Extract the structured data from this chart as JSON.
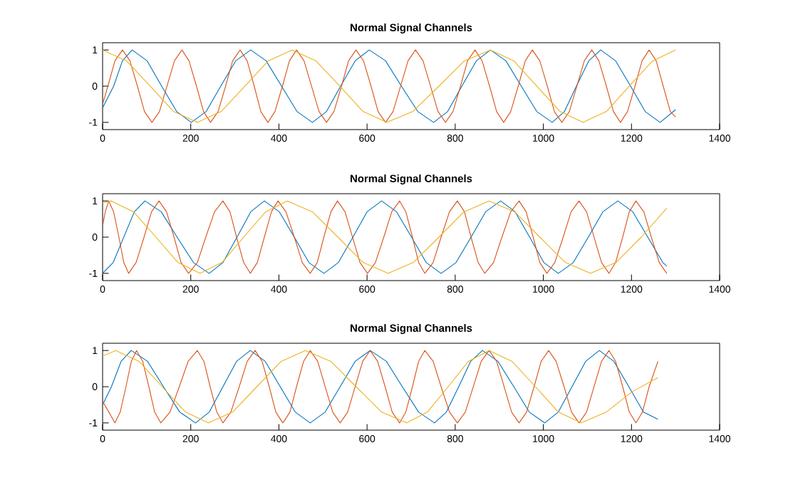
{
  "chart_data": [
    {
      "type": "line",
      "title": "Normal Signal Channels",
      "xlim": [
        0,
        1400
      ],
      "ylim": [
        -1.2,
        1.2
      ],
      "xticks": [
        0,
        200,
        400,
        600,
        800,
        1000,
        1200,
        1400
      ],
      "yticks": [
        -1,
        0,
        1
      ],
      "series": [
        {
          "color": "#0072bd",
          "x": [
            0,
            25,
            45,
            67,
            101,
            134,
            168,
            201,
            235,
            268,
            302,
            336,
            371,
            406,
            441,
            476,
            508,
            540,
            573,
            605,
            642,
            678,
            715,
            751,
            783,
            815,
            848,
            880,
            915,
            950,
            985,
            1020,
            1048,
            1075,
            1103,
            1130,
            1164,
            1198,
            1231,
            1265,
            1300
          ],
          "values": [
            -0.6,
            0,
            0.7,
            1,
            0.7,
            0,
            -0.7,
            -1,
            -0.7,
            0,
            0.7,
            1,
            0.7,
            0,
            -0.7,
            -1,
            -0.7,
            0,
            0.7,
            1,
            0.7,
            0,
            -0.7,
            -1,
            -0.7,
            0,
            0.7,
            1,
            0.7,
            0,
            -0.7,
            -1,
            -0.7,
            0,
            0.7,
            1,
            0.7,
            0,
            -0.7,
            -1,
            -0.65
          ]
        },
        {
          "color": "#d95319",
          "x": [
            0,
            12,
            28,
            45,
            62,
            79,
            95,
            112,
            129,
            146,
            163,
            180,
            196,
            213,
            229,
            245,
            262,
            279,
            295,
            312,
            328,
            344,
            359,
            375,
            391,
            408,
            424,
            440,
            457,
            474,
            491,
            508,
            525,
            542,
            558,
            575,
            592,
            609,
            625,
            642,
            659,
            676,
            693,
            710,
            727,
            744,
            761,
            778,
            795,
            812,
            828,
            845,
            861,
            878,
            894,
            910,
            926,
            943,
            959,
            975,
            992,
            1009,
            1025,
            1042,
            1059,
            1076,
            1093,
            1110,
            1126,
            1143,
            1159,
            1175,
            1191,
            1208,
            1224,
            1240,
            1256,
            1272,
            1288,
            1300
          ],
          "values": [
            -0.5,
            0,
            0.7,
            1,
            0.7,
            0,
            -0.7,
            -1,
            -0.7,
            0,
            0.7,
            1,
            0.7,
            0,
            -0.7,
            -1,
            -0.7,
            0,
            0.7,
            1,
            0.7,
            0,
            -0.7,
            -1,
            -0.7,
            0,
            0.7,
            1,
            0.7,
            0,
            -0.7,
            -1,
            -0.7,
            0,
            0.7,
            1,
            0.7,
            0,
            -0.7,
            -1,
            -0.7,
            0,
            0.7,
            1,
            0.7,
            0,
            -0.7,
            -1,
            -0.7,
            0,
            0.7,
            1,
            0.7,
            0,
            -0.7,
            -1,
            -0.7,
            0,
            0.7,
            1,
            0.7,
            0,
            -0.7,
            -1,
            -0.7,
            0,
            0.7,
            1,
            0.7,
            0,
            -0.7,
            -1,
            -0.7,
            0,
            0.7,
            1,
            0.7,
            0,
            -0.7,
            -0.85
          ]
        },
        {
          "color": "#edb120",
          "x": [
            0,
            54,
            108,
            161,
            215,
            269,
            323,
            376,
            430,
            484,
            538,
            591,
            645,
            704,
            763,
            821,
            880,
            933,
            985,
            1038,
            1090,
            1143,
            1195,
            1248,
            1300
          ],
          "values": [
            1,
            0.7,
            0,
            -0.7,
            -1,
            -0.7,
            0,
            0.7,
            1,
            0.7,
            0,
            -0.7,
            -1,
            -0.7,
            0,
            0.7,
            1,
            0.7,
            0,
            -0.7,
            -1,
            -0.7,
            0,
            0.7,
            1
          ]
        }
      ]
    },
    {
      "type": "line",
      "title": "Normal Signal Channels",
      "xlim": [
        0,
        1400
      ],
      "ylim": [
        -1.2,
        1.2
      ],
      "xticks": [
        0,
        200,
        400,
        600,
        800,
        1000,
        1200,
        1400
      ],
      "yticks": [
        -1,
        0,
        1
      ],
      "series": [
        {
          "color": "#0072bd",
          "x": [
            0,
            24,
            48,
            72,
            96,
            133,
            169,
            206,
            242,
            273,
            305,
            336,
            367,
            401,
            435,
            468,
            502,
            535,
            568,
            600,
            633,
            667,
            701,
            734,
            768,
            802,
            836,
            869,
            903,
            936,
            969,
            1001,
            1034,
            1068,
            1102,
            1135,
            1169,
            1203,
            1237,
            1271,
            1280
          ],
          "values": [
            -1,
            -0.7,
            0,
            0.7,
            1,
            0.7,
            0,
            -0.7,
            -1,
            -0.7,
            0,
            0.7,
            1,
            0.7,
            0,
            -0.7,
            -1,
            -0.7,
            0,
            0.7,
            1,
            0.7,
            0,
            -0.7,
            -1,
            -0.7,
            0,
            0.7,
            1,
            0.7,
            0,
            -0.7,
            -1,
            -0.7,
            0,
            0.7,
            1,
            0.7,
            0,
            -0.7,
            -0.8
          ]
        },
        {
          "color": "#d95319",
          "x": [
            0,
            6,
            14,
            25,
            37,
            48,
            59,
            76,
            94,
            111,
            128,
            145,
            162,
            178,
            195,
            215,
            234,
            254,
            273,
            289,
            304,
            320,
            335,
            351,
            367,
            383,
            398,
            416,
            435,
            453,
            471,
            487,
            502,
            518,
            533,
            550,
            567,
            584,
            601,
            619,
            638,
            656,
            674,
            688,
            703,
            717,
            731,
            750,
            768,
            787,
            805,
            821,
            836,
            852,
            867,
            887,
            906,
            926,
            945,
            961,
            977,
            992,
            1008,
            1026,
            1045,
            1063,
            1081,
            1098,
            1115,
            1132,
            1149,
            1164,
            1180,
            1195,
            1210,
            1228,
            1245,
            1263,
            1280
          ],
          "values": [
            0.3,
            0.7,
            1,
            0.7,
            0,
            -0.7,
            -1,
            -0.7,
            0,
            0.7,
            1,
            0.7,
            0,
            -0.7,
            -1,
            -0.7,
            0,
            0.7,
            1,
            0.7,
            0,
            -0.7,
            -1,
            -0.7,
            0,
            0.7,
            1,
            0.7,
            0,
            -0.7,
            -1,
            -0.7,
            0,
            0.7,
            1,
            0.7,
            0,
            -0.7,
            -1,
            -0.7,
            0,
            0.7,
            1,
            0.7,
            0,
            -0.7,
            -1,
            -0.7,
            0,
            0.7,
            1,
            0.7,
            0,
            -0.7,
            -1,
            -0.7,
            0,
            0.7,
            1,
            0.7,
            0,
            -0.7,
            -1,
            -0.7,
            0,
            0.7,
            1,
            0.7,
            0,
            -0.7,
            -1,
            -0.7,
            0,
            0.7,
            1,
            0.7,
            0,
            -0.7,
            -1
          ]
        },
        {
          "color": "#edb120",
          "x": [
            0,
            20,
            70,
            121,
            171,
            221,
            271,
            320,
            370,
            419,
            476,
            534,
            591,
            648,
            705,
            763,
            820,
            877,
            935,
            992,
            1050,
            1107,
            1165,
            1222,
            1280
          ],
          "values": [
            0.95,
            1,
            0.7,
            0,
            -0.7,
            -1,
            -0.7,
            0,
            0.7,
            1,
            0.7,
            0,
            -0.7,
            -1,
            -0.7,
            0,
            0.7,
            1,
            0.7,
            0,
            -0.7,
            -1,
            -0.7,
            0,
            0.8
          ]
        }
      ]
    },
    {
      "type": "line",
      "title": "Normal Signal Channels",
      "xlim": [
        0,
        1400
      ],
      "ylim": [
        -1.2,
        1.2
      ],
      "xticks": [
        0,
        200,
        400,
        600,
        800,
        1000,
        1200,
        1400
      ],
      "yticks": [
        -1,
        0,
        1
      ],
      "series": [
        {
          "color": "#0072bd",
          "x": [
            0,
            20,
            42,
            65,
            102,
            138,
            175,
            211,
            242,
            273,
            304,
            335,
            369,
            403,
            437,
            471,
            505,
            539,
            573,
            607,
            644,
            680,
            717,
            753,
            780,
            808,
            835,
            862,
            897,
            933,
            968,
            1003,
            1034,
            1065,
            1096,
            1127,
            1160,
            1194,
            1227,
            1260
          ],
          "values": [
            -0.5,
            0,
            0.7,
            1,
            0.7,
            0,
            -0.7,
            -1,
            -0.7,
            0,
            0.7,
            1,
            0.7,
            0,
            -0.7,
            -1,
            -0.7,
            0,
            0.7,
            1,
            0.7,
            0,
            -0.7,
            -1,
            -0.7,
            0,
            0.7,
            1,
            0.7,
            0,
            -0.7,
            -1,
            -0.7,
            0,
            0.7,
            1,
            0.7,
            0,
            -0.7,
            -0.9
          ]
        },
        {
          "color": "#d95319",
          "x": [
            0,
            28,
            40,
            53,
            65,
            77,
            91,
            105,
            118,
            132,
            153,
            174,
            194,
            215,
            230,
            244,
            259,
            273,
            291,
            310,
            328,
            346,
            362,
            378,
            393,
            409,
            425,
            440,
            456,
            471,
            488,
            505,
            522,
            539,
            556,
            573,
            590,
            607,
            624,
            641,
            657,
            674,
            688,
            703,
            717,
            731,
            750,
            768,
            787,
            805,
            823,
            841,
            859,
            877,
            894,
            911,
            928,
            945,
            962,
            979,
            995,
            1012,
            1029,
            1047,
            1064,
            1081,
            1098,
            1115,
            1132,
            1149,
            1164,
            1180,
            1195,
            1210,
            1225,
            1240,
            1260
          ],
          "values": [
            -0.4,
            -1,
            -0.7,
            0,
            0.7,
            1,
            0.7,
            0,
            -0.7,
            -1,
            -0.7,
            0,
            0.7,
            1,
            0.7,
            0,
            -0.7,
            -1,
            -0.7,
            0,
            0.7,
            1,
            0.7,
            0,
            -0.7,
            -1,
            -0.7,
            0,
            0.7,
            1,
            0.7,
            0,
            -0.7,
            -1,
            -0.7,
            0,
            0.7,
            1,
            0.7,
            0,
            -0.7,
            -1,
            -0.7,
            0,
            0.7,
            1,
            0.7,
            0,
            -0.7,
            -1,
            -0.7,
            0,
            0.7,
            1,
            0.7,
            0,
            -0.7,
            -1,
            -0.7,
            0,
            0.7,
            1,
            0.7,
            0,
            -0.7,
            -1,
            -0.7,
            0,
            0.7,
            1,
            0.7,
            0,
            -0.7,
            -1,
            -0.7,
            0,
            0.7
          ]
        },
        {
          "color": "#edb120",
          "x": [
            0,
            30,
            83,
            135,
            188,
            240,
            295,
            350,
            405,
            460,
            518,
            575,
            633,
            690,
            737,
            784,
            830,
            877,
            929,
            982,
            1034,
            1086,
            1143,
            1200,
            1260
          ],
          "values": [
            0.85,
            1,
            0.7,
            0,
            -0.7,
            -1,
            -0.7,
            0,
            0.7,
            1,
            0.7,
            0,
            -0.7,
            -1,
            -0.7,
            0,
            0.7,
            1,
            0.7,
            0,
            -0.7,
            -1,
            -0.7,
            -0.15,
            0.25
          ]
        }
      ]
    }
  ]
}
